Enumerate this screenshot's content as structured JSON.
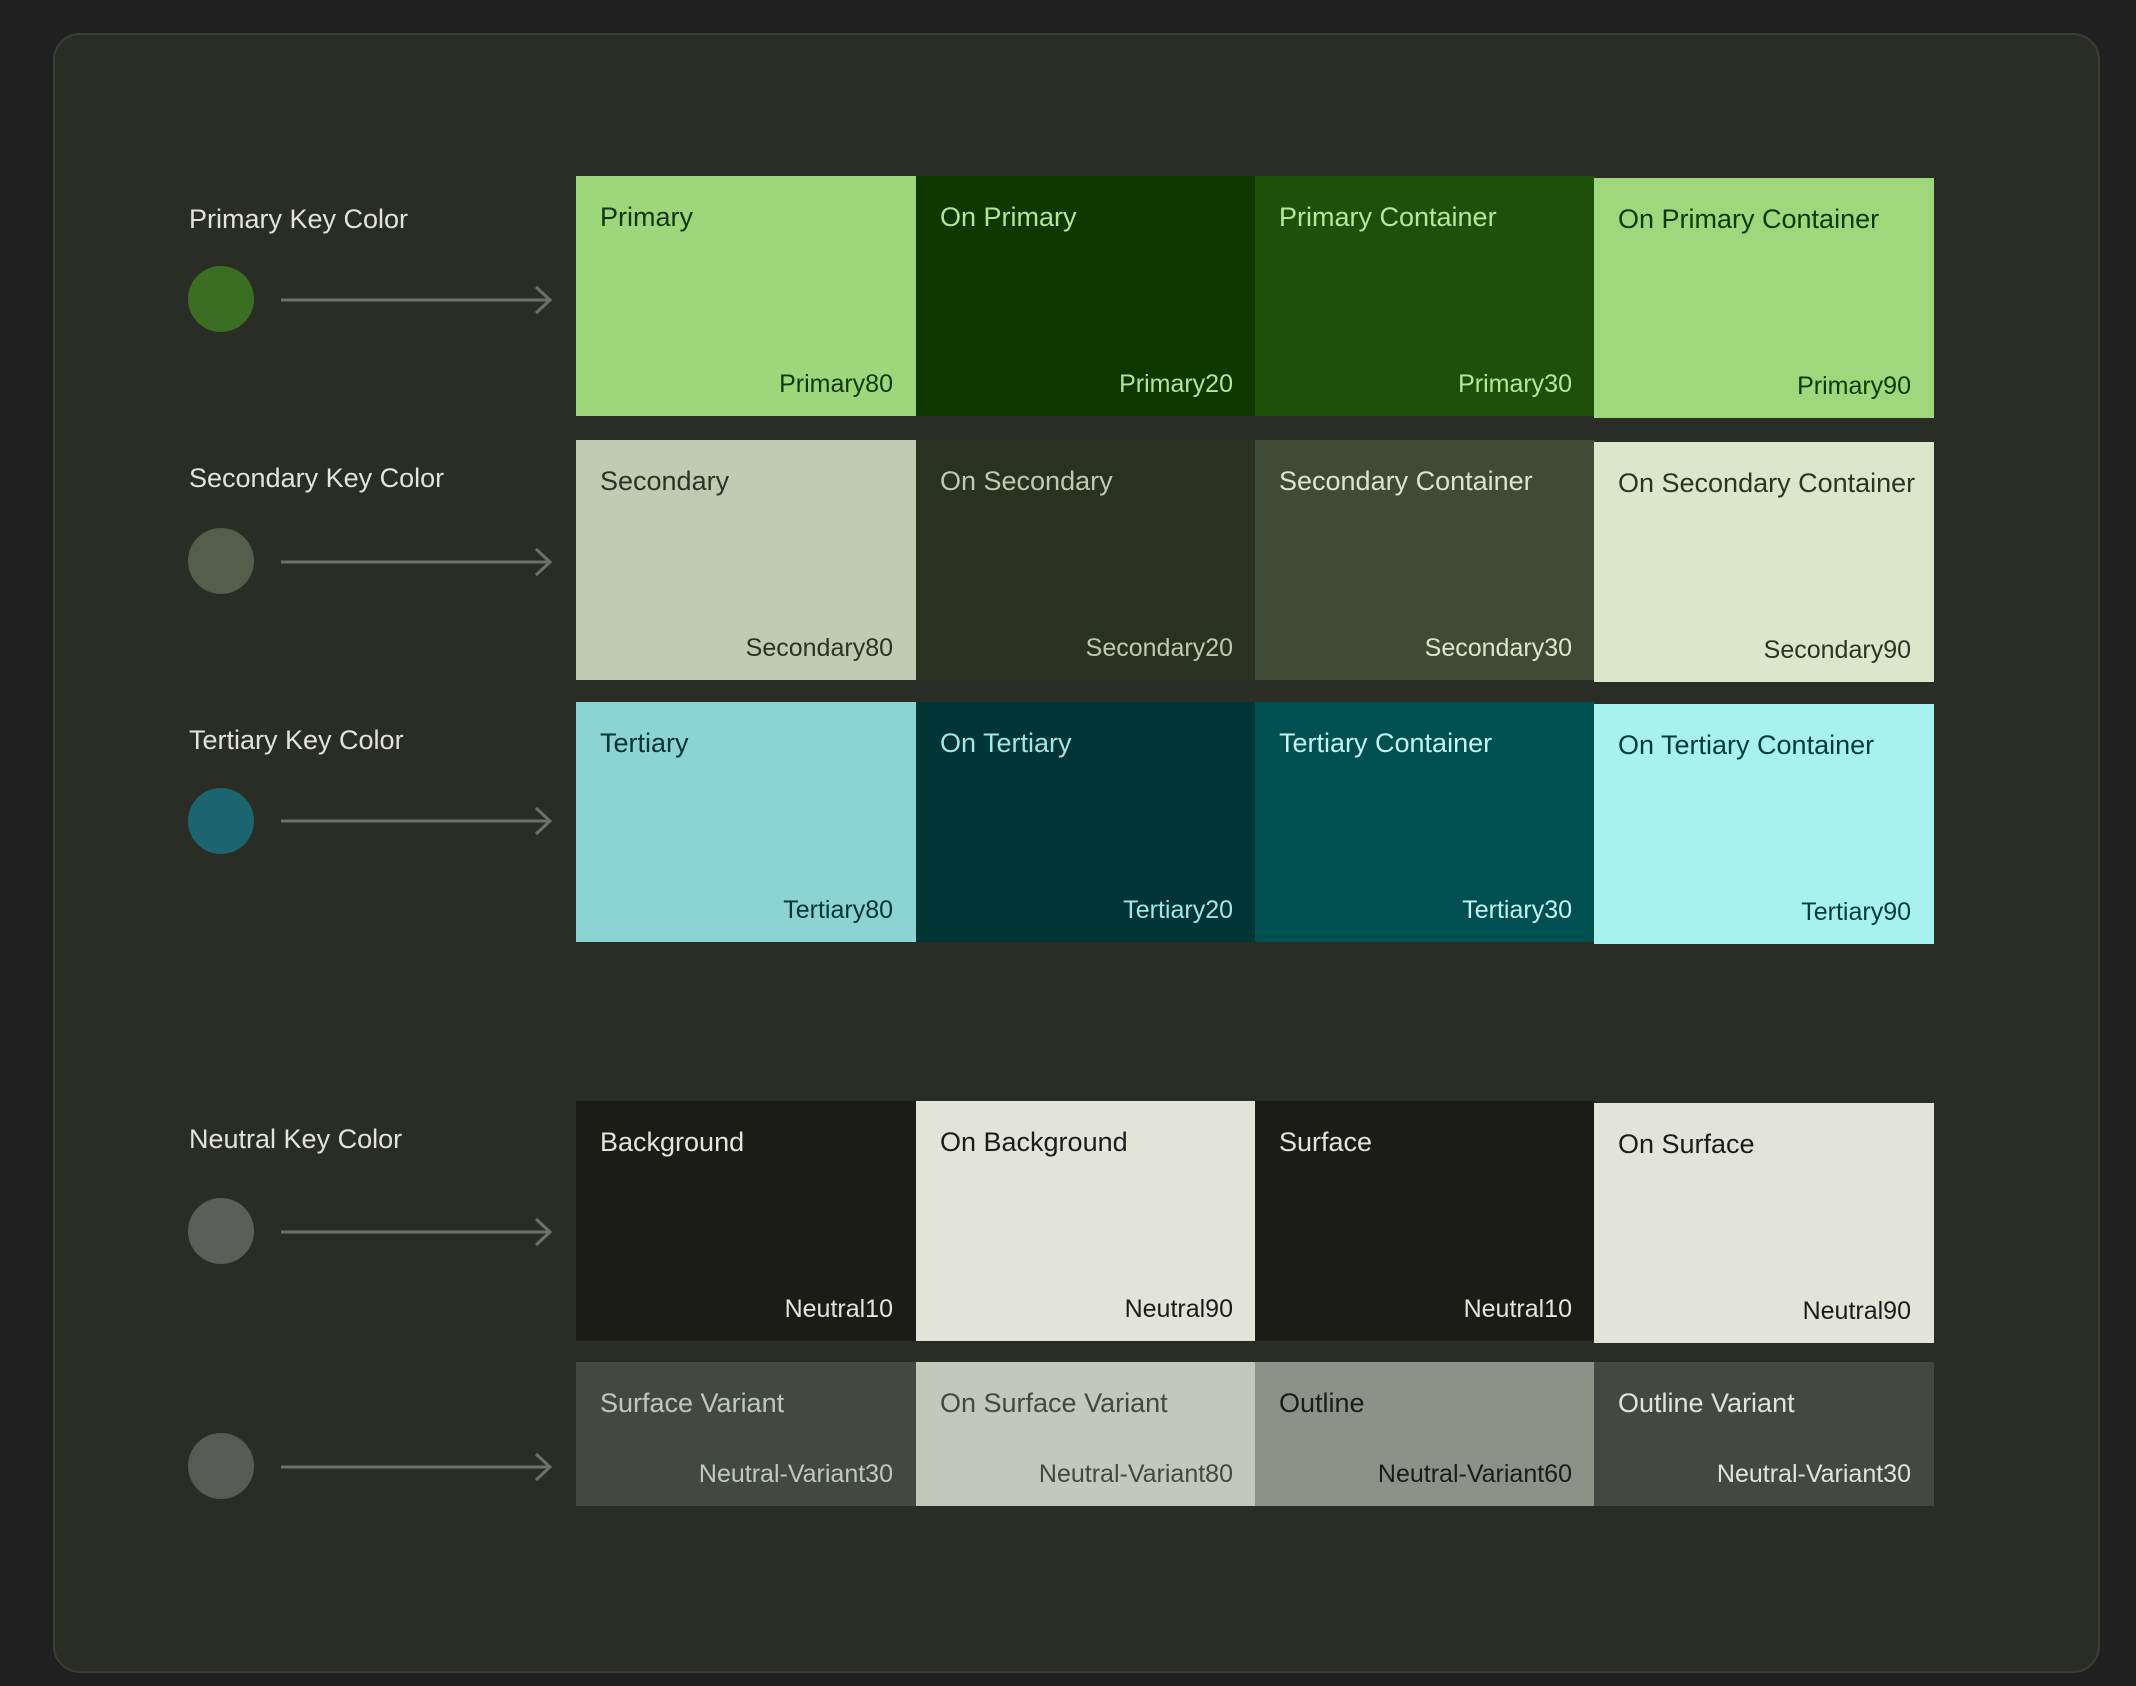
{
  "rows": [
    {
      "label": "Primary Key Color",
      "dot_color": "#3b6e22",
      "tiles": [
        {
          "role": "Primary",
          "tone": "Primary80",
          "bg": "#9dd67b",
          "fg": "#10380a"
        },
        {
          "role": "On Primary",
          "tone": "Primary20",
          "bg": "#0d3900",
          "fg": "#b3e595"
        },
        {
          "role": "Primary Container",
          "tone": "Primary30",
          "bg": "#1f5009",
          "fg": "#b5e898"
        },
        {
          "role": "On Primary Container",
          "tone": "Primary90",
          "bg": "#9ed77c",
          "fg": "#0d3900"
        }
      ]
    },
    {
      "label": "Secondary Key Color",
      "dot_color": "#555d4d",
      "tiles": [
        {
          "role": "Secondary",
          "tone": "Secondary80",
          "bg": "#bfcbb2",
          "fg": "#2b3226"
        },
        {
          "role": "On Secondary",
          "tone": "Secondary20",
          "bg": "#2a3121",
          "fg": "#bec9b2"
        },
        {
          "role": "Secondary Container",
          "tone": "Secondary30",
          "bg": "#3f4a37",
          "fg": "#dbe6cc"
        },
        {
          "role": "On Secondary Container",
          "tone": "Secondary90",
          "bg": "#dbe7ca",
          "fg": "#2b3425"
        }
      ]
    },
    {
      "label": "Tertiary Key Color",
      "dot_color": "#1c6470",
      "tiles": [
        {
          "role": "Tertiary",
          "tone": "Tertiary80",
          "bg": "#8bd4d3",
          "fg": "#003334"
        },
        {
          "role": "On Tertiary",
          "tone": "Tertiary20",
          "bg": "#003536",
          "fg": "#a5e5e5"
        },
        {
          "role": "Tertiary Container",
          "tone": "Tertiary30",
          "bg": "#004f51",
          "fg": "#c2f4f4"
        },
        {
          "role": "On Tertiary Container",
          "tone": "Tertiary90",
          "bg": "#a7f1ef",
          "fg": "#003b3d"
        }
      ]
    },
    {
      "label": "Neutral Key Color",
      "dot_color": "#5c5e59",
      "tiles": [
        {
          "role": "Background",
          "tone": "Neutral10",
          "bg": "#1b1c18",
          "fg": "#e4e5dd"
        },
        {
          "role": "On Background",
          "tone": "Neutral90",
          "bg": "#e1e4d6",
          "fg": "#1b1c18"
        },
        {
          "role": "Surface",
          "tone": "Neutral10",
          "bg": "#1b1c18",
          "fg": "#e4e5dd"
        },
        {
          "role": "On Surface",
          "tone": "Neutral90",
          "bg": "#e1e4d6",
          "fg": "#1b1c18"
        }
      ]
    },
    {
      "label": "",
      "dot_color": "#575b55",
      "tiles": [
        {
          "role": "Surface Variant",
          "tone": "Neutral-Variant30",
          "bg": "#434941",
          "fg": "#c2c9bb"
        },
        {
          "role": "On Surface Variant",
          "tone": "Neutral-Variant80",
          "bg": "#c3c8bb",
          "fg": "#434941"
        },
        {
          "role": "Outline",
          "tone": "Neutral-Variant60",
          "bg": "#8c9286",
          "fg": "#1b1c18"
        },
        {
          "role": "Outline Variant",
          "tone": "Neutral-Variant30",
          "bg": "#434941",
          "fg": "#e2e4dc"
        }
      ]
    }
  ],
  "arrow_color": "#6e716b"
}
